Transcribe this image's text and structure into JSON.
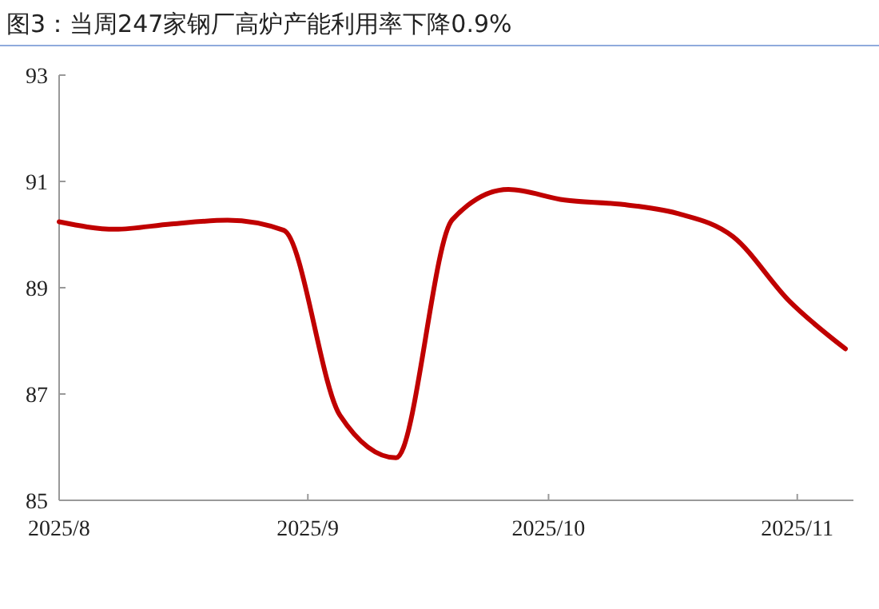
{
  "chart_data": {
    "type": "line",
    "title": "图3：当周247家钢厂高炉产能利用率下降0.9%",
    "x": [
      "2025-08-01",
      "2025-08-08",
      "2025-08-15",
      "2025-08-22",
      "2025-08-29",
      "2025-09-05",
      "2025-09-12",
      "2025-09-19",
      "2025-09-26",
      "2025-10-03",
      "2025-10-10",
      "2025-10-17",
      "2025-10-24",
      "2025-10-31",
      "2025-11-07"
    ],
    "series": [
      {
        "color": "#c00000",
        "values": [
          90.24,
          90.1,
          90.2,
          90.27,
          90.08,
          86.6,
          85.8,
          90.28,
          90.85,
          90.65,
          90.57,
          90.4,
          89.96,
          88.75,
          87.85
        ]
      }
    ],
    "xlim": [
      "2025-08-01",
      "2025-11-08"
    ],
    "xticks": [
      {
        "value": "2025-08-01",
        "label": "2025/8"
      },
      {
        "value": "2025-09-01",
        "label": "2025/9"
      },
      {
        "value": "2025-10-01",
        "label": "2025/10"
      },
      {
        "value": "2025-11-01",
        "label": "2025/11"
      }
    ],
    "ylim": [
      85,
      93
    ],
    "yticks": [
      85,
      87,
      89,
      91,
      93
    ],
    "grid": false,
    "marker": "none",
    "line_style": "solid"
  }
}
